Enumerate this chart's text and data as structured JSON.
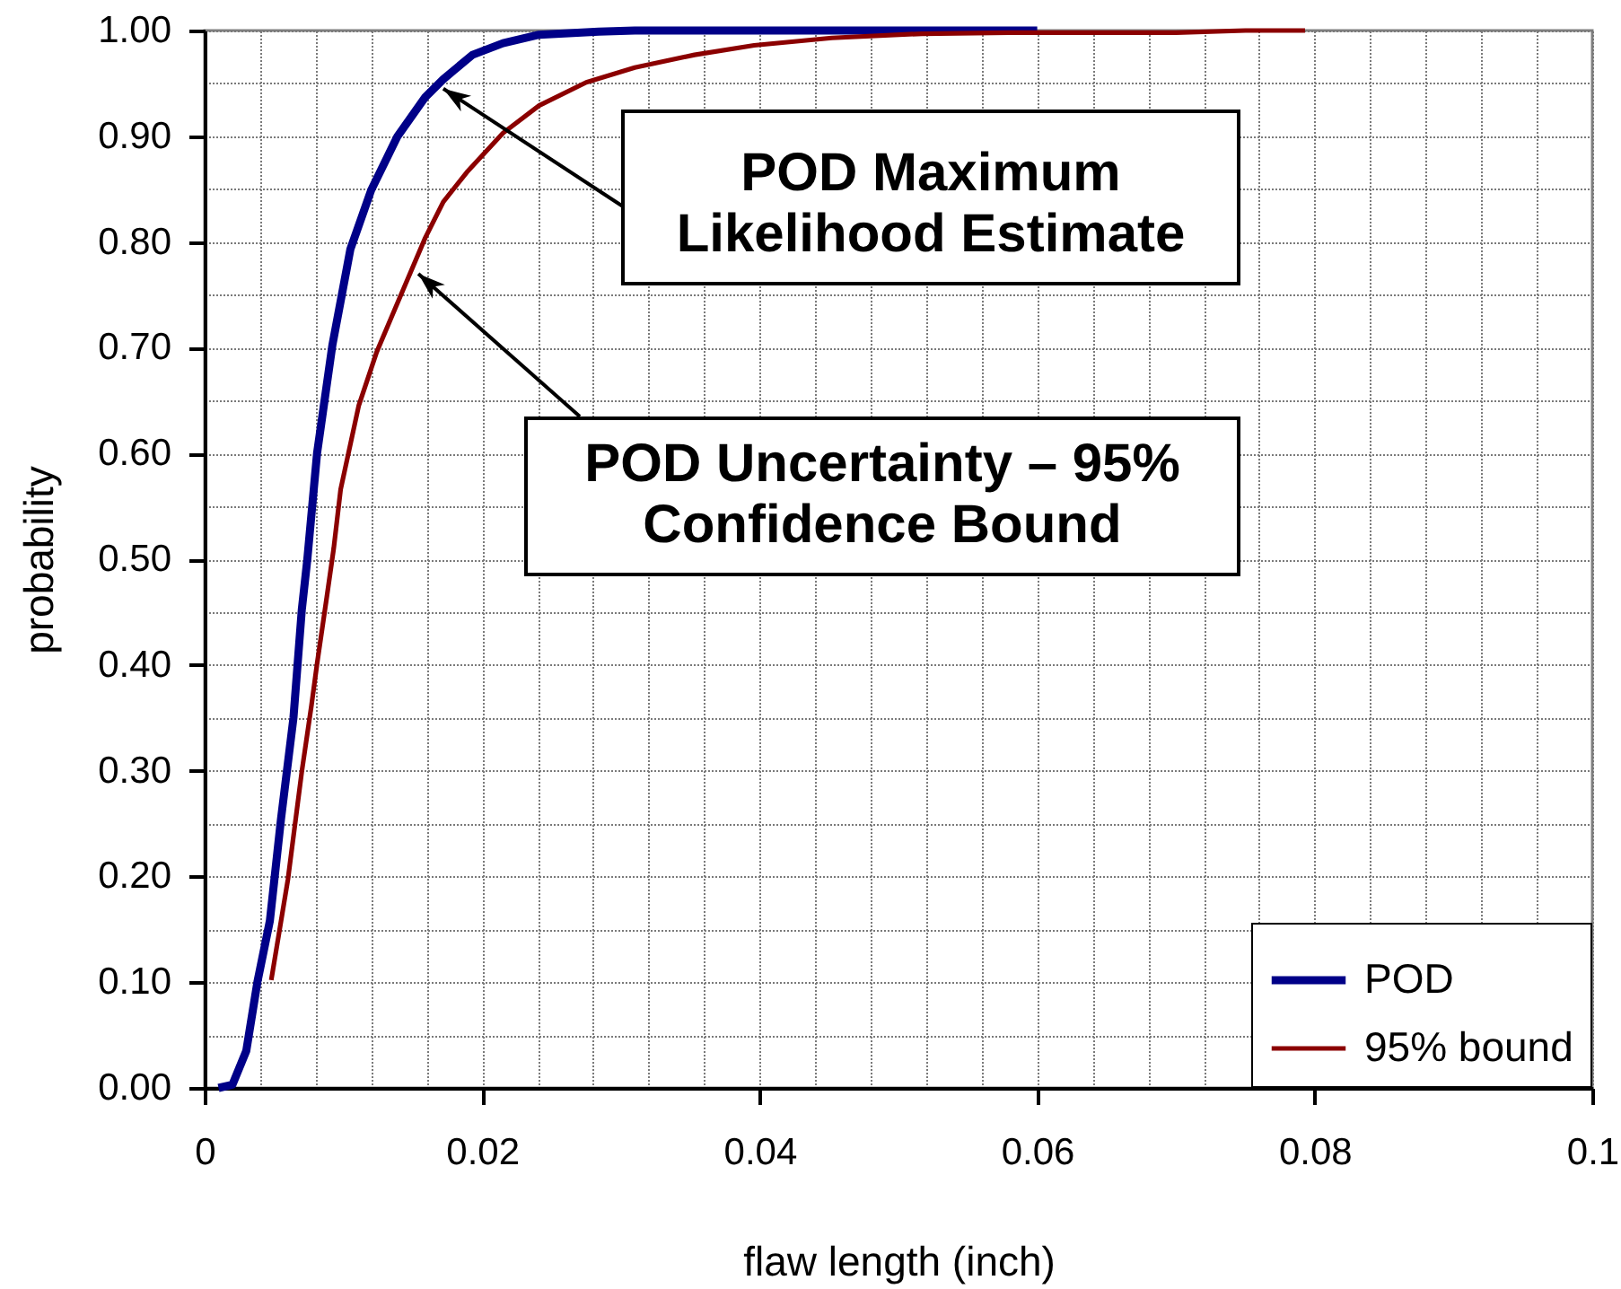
{
  "chart_data": {
    "type": "line",
    "xlabel": "flaw length (inch)",
    "ylabel": "probability",
    "series": [
      {
        "name": "POD",
        "color": "#000088",
        "x": [
          0.001,
          0.002,
          0.003,
          0.0038,
          0.0047,
          0.0055,
          0.0064,
          0.007,
          0.0074,
          0.0081,
          0.0092,
          0.0105,
          0.012,
          0.0139,
          0.0159,
          0.0172,
          0.0193,
          0.0215,
          0.0241,
          0.0284,
          0.031,
          0.06
        ],
        "values": [
          0,
          0.003,
          0.035,
          0.1,
          0.158,
          0.254,
          0.35,
          0.452,
          0.5,
          0.6,
          0.702,
          0.793,
          0.849,
          0.9,
          0.937,
          0.954,
          0.977,
          0.988,
          0.996,
          0.999,
          1,
          1
        ]
      },
      {
        "name": "95% bound",
        "color": "#8b0000",
        "x": [
          0.0048,
          0.006,
          0.007,
          0.0077,
          0.0081,
          0.0088,
          0.0093,
          0.0098,
          0.0111,
          0.0124,
          0.0135,
          0.0146,
          0.0159,
          0.0172,
          0.0189,
          0.0215,
          0.0241,
          0.0275,
          0.031,
          0.0353,
          0.0396,
          0.0452,
          0.0517,
          0.058,
          0.065,
          0.07,
          0.075,
          0.0793
        ],
        "values": [
          0.102,
          0.197,
          0.299,
          0.362,
          0.401,
          0.464,
          0.51,
          0.566,
          0.645,
          0.696,
          0.73,
          0.764,
          0.804,
          0.838,
          0.866,
          0.903,
          0.929,
          0.951,
          0.965,
          0.977,
          0.986,
          0.993,
          0.997,
          0.998,
          0.998,
          0.998,
          1,
          1
        ]
      }
    ],
    "xlim": [
      0,
      0.1
    ],
    "ylim": [
      0,
      1
    ],
    "xticks": [
      0,
      {
        "value": 0.004,
        "label": null
      },
      {
        "value": 0.008,
        "label": null
      },
      {
        "value": 0.012,
        "label": null
      },
      {
        "value": 0.016,
        "label": null
      },
      0.02,
      {
        "value": 0.024,
        "label": null
      },
      {
        "value": 0.028,
        "label": null
      },
      {
        "value": 0.032,
        "label": null
      },
      {
        "value": 0.036,
        "label": null
      },
      0.04,
      {
        "value": 0.044,
        "label": null
      },
      {
        "value": 0.048,
        "label": null
      },
      {
        "value": 0.052,
        "label": null
      },
      {
        "value": 0.056,
        "label": null
      },
      0.06,
      {
        "value": 0.064,
        "label": null
      },
      {
        "value": 0.068,
        "label": null
      },
      {
        "value": 0.072,
        "label": null
      },
      {
        "value": 0.076,
        "label": null
      },
      0.08,
      {
        "value": 0.084,
        "label": null
      },
      {
        "value": 0.088,
        "label": null
      },
      {
        "value": 0.092,
        "label": null
      },
      {
        "value": 0.096,
        "label": null
      },
      0.1
    ],
    "yticks": [
      {
        "value": 0,
        "label": "0.00"
      },
      {
        "value": 0.05,
        "label": null
      },
      {
        "value": 0.1,
        "label": "0.10"
      },
      {
        "value": 0.15,
        "label": null
      },
      {
        "value": 0.2,
        "label": "0.20"
      },
      {
        "value": 0.25,
        "label": null
      },
      {
        "value": 0.3,
        "label": "0.30"
      },
      {
        "value": 0.35,
        "label": null
      },
      {
        "value": 0.4,
        "label": "0.40"
      },
      {
        "value": 0.45,
        "label": null
      },
      {
        "value": 0.5,
        "label": "0.50"
      },
      {
        "value": 0.55,
        "label": null
      },
      {
        "value": 0.6,
        "label": "0.60"
      },
      {
        "value": 0.65,
        "label": null
      },
      {
        "value": 0.7,
        "label": "0.70"
      },
      {
        "value": 0.75,
        "label": null
      },
      {
        "value": 0.8,
        "label": "0.80"
      },
      {
        "value": 0.85,
        "label": null
      },
      {
        "value": 0.9,
        "label": "0.90"
      },
      {
        "value": 0.95,
        "label": null
      },
      {
        "value": 1,
        "label": "1.00"
      }
    ],
    "grid": true,
    "legend": "bottom right",
    "annotations": [
      {
        "text": "POD Maximum Likelihood Estimate",
        "x": 0.0172,
        "y": 0.945
      },
      {
        "text": "POD Uncertainty – 95% Confidence Bound",
        "x": 0.0154,
        "y": 0.77
      }
    ]
  }
}
